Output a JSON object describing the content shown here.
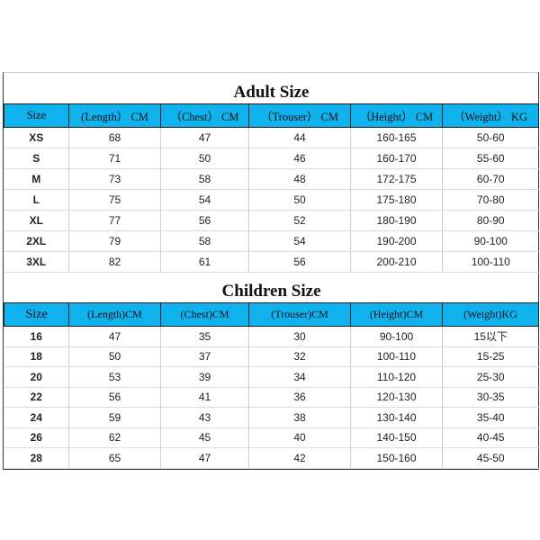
{
  "adult": {
    "title": "Adult Size",
    "headers": [
      "Size",
      "(Length） CM",
      "（Chest） CM",
      "（Trouser） CM",
      "（Height） CM",
      "（Weight） KG"
    ],
    "rows": [
      [
        "XS",
        "68",
        "47",
        "44",
        "160-165",
        "50-60"
      ],
      [
        "S",
        "71",
        "50",
        "46",
        "160-170",
        "55-60"
      ],
      [
        "M",
        "73",
        "58",
        "48",
        "172-175",
        "60-70"
      ],
      [
        "L",
        "75",
        "54",
        "50",
        "175-180",
        "70-80"
      ],
      [
        "XL",
        "77",
        "56",
        "52",
        "180-190",
        "80-90"
      ],
      [
        "2XL",
        "79",
        "58",
        "54",
        "190-200",
        "90-100"
      ],
      [
        "3XL",
        "82",
        "61",
        "56",
        "200-210",
        "100-110"
      ]
    ]
  },
  "children": {
    "title": "Children Size",
    "headers": [
      "Size",
      "(Length)CM",
      "(Chest)CM",
      "(Trouser)CM",
      "(Height)CM",
      "(Weight)KG"
    ],
    "rows": [
      [
        "16",
        "47",
        "35",
        "30",
        "90-100",
        "15以下"
      ],
      [
        "18",
        "50",
        "37",
        "32",
        "100-110",
        "15-25"
      ],
      [
        "20",
        "53",
        "39",
        "34",
        "110-120",
        "25-30"
      ],
      [
        "22",
        "56",
        "41",
        "36",
        "120-130",
        "30-35"
      ],
      [
        "24",
        "59",
        "43",
        "38",
        "130-140",
        "35-40"
      ],
      [
        "26",
        "62",
        "45",
        "40",
        "140-150",
        "40-45"
      ],
      [
        "28",
        "65",
        "47",
        "42",
        "150-160",
        "45-50"
      ]
    ]
  }
}
